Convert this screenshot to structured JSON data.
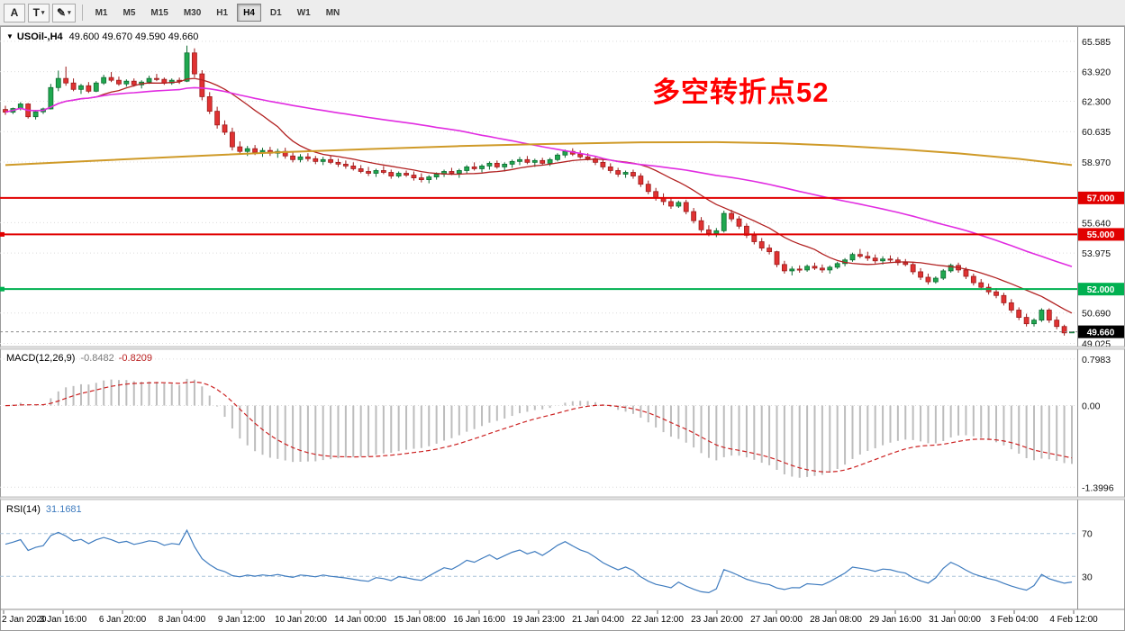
{
  "toolbar": {
    "tool_buttons": [
      {
        "id": "cursor",
        "label": "A",
        "dropdown": false
      },
      {
        "id": "text",
        "label": "T",
        "dropdown": true
      },
      {
        "id": "draw",
        "label": "✎",
        "dropdown": true
      }
    ],
    "dropdown_icon": "▾",
    "timeframes": [
      "M1",
      "M5",
      "M15",
      "M30",
      "H1",
      "H4",
      "D1",
      "W1",
      "MN"
    ],
    "active_timeframe": "H4"
  },
  "window": {
    "collapse_icon": "▼"
  },
  "chart": {
    "symbol_title": "USOil-,H4",
    "ohlc_text": "49.600 49.670 49.590 49.660",
    "annotation": {
      "text": "多空转折点52",
      "color": "#ff0000"
    },
    "price_axis_labels": [
      "65.585",
      "63.920",
      "62.300",
      "60.635",
      "58.970",
      "55.640",
      "53.975",
      "50.690",
      "49.025"
    ],
    "levels": [
      {
        "label": "57.000",
        "value": 57.0,
        "color": "#e10000",
        "anchor": false
      },
      {
        "label": "55.000",
        "value": 55.0,
        "color": "#e10000",
        "anchor": true
      },
      {
        "label": "52.000",
        "value": 52.0,
        "color": "#00b050",
        "anchor": true
      }
    ],
    "current_price": {
      "label": "49.660",
      "value": 49.66,
      "color": "#000000"
    }
  },
  "indicators": {
    "macd": {
      "name": "MACD(12,26,9)",
      "main_value": "-0.8482",
      "signal_value": "-0.8209",
      "axis_labels": [
        {
          "text": "0.7983",
          "value": 0.7983
        },
        {
          "text": "0.00",
          "value": 0
        },
        {
          "text": "-1.3996",
          "value": -1.3996
        }
      ],
      "histogram_color": "#bdbdbd",
      "signal_color": "#cc2222"
    },
    "rsi": {
      "name": "RSI(14)",
      "value": "31.1681",
      "line_color": "#3f7cbf",
      "levels": [
        {
          "text": "70",
          "value": 70
        },
        {
          "text": "30",
          "value": 30
        }
      ]
    }
  },
  "time_axis": {
    "labels": [
      "2 Jan 2020",
      "3 Jan 16:00",
      "6 Jan 20:00",
      "8 Jan 04:00",
      "9 Jan 12:00",
      "10 Jan 20:00",
      "14 Jan 00:00",
      "15 Jan 08:00",
      "16 Jan 16:00",
      "19 Jan 23:00",
      "21 Jan 04:00",
      "22 Jan 12:00",
      "23 Jan 20:00",
      "27 Jan 00:00",
      "28 Jan 08:00",
      "29 Jan 16:00",
      "31 Jan 00:00",
      "3 Feb 04:00",
      "4 Feb 12:00"
    ]
  },
  "chart_data": {
    "type": "candlestick",
    "symbol": "USOil",
    "timeframe": "H4",
    "title": "USOil-,H4",
    "price_range": [
      48.9,
      66.37
    ],
    "macd_range": [
      -1.55,
      0.95
    ],
    "rsi_range": [
      0,
      100
    ],
    "candle_up_color": "#1fa84f",
    "candle_down_color": "#e03232",
    "candles": [
      [
        61.85,
        62.05,
        61.55,
        61.7
      ],
      [
        61.7,
        61.95,
        61.6,
        61.9
      ],
      [
        61.9,
        62.25,
        61.8,
        62.15
      ],
      [
        62.15,
        62.2,
        61.35,
        61.45
      ],
      [
        61.45,
        61.8,
        61.3,
        61.72
      ],
      [
        61.72,
        61.95,
        61.6,
        61.88
      ],
      [
        61.88,
        63.25,
        61.85,
        63.05
      ],
      [
        63.05,
        63.98,
        62.85,
        63.55
      ],
      [
        63.55,
        64.2,
        63.15,
        63.3
      ],
      [
        63.3,
        63.55,
        62.85,
        62.95
      ],
      [
        62.95,
        63.25,
        62.7,
        63.15
      ],
      [
        63.15,
        63.35,
        62.75,
        62.85
      ],
      [
        62.85,
        63.4,
        62.8,
        63.3
      ],
      [
        63.3,
        63.75,
        63.2,
        63.6
      ],
      [
        63.6,
        63.9,
        63.35,
        63.45
      ],
      [
        63.45,
        63.65,
        63.15,
        63.25
      ],
      [
        63.25,
        63.5,
        63.1,
        63.4
      ],
      [
        63.4,
        63.55,
        63.1,
        63.2
      ],
      [
        63.2,
        63.45,
        63.0,
        63.35
      ],
      [
        63.35,
        63.7,
        63.25,
        63.55
      ],
      [
        63.55,
        63.8,
        63.4,
        63.5
      ],
      [
        63.5,
        63.6,
        63.2,
        63.3
      ],
      [
        63.3,
        63.55,
        63.2,
        63.45
      ],
      [
        63.45,
        63.6,
        63.25,
        63.4
      ],
      [
        63.4,
        65.35,
        63.35,
        64.95
      ],
      [
        64.95,
        65.2,
        63.6,
        63.8
      ],
      [
        63.8,
        64.0,
        62.35,
        62.55
      ],
      [
        62.55,
        62.8,
        61.6,
        61.75
      ],
      [
        61.75,
        62.0,
        60.8,
        61.0
      ],
      [
        61.0,
        61.25,
        60.45,
        60.6
      ],
      [
        60.6,
        60.85,
        59.6,
        59.8
      ],
      [
        59.8,
        60.1,
        59.4,
        59.55
      ],
      [
        59.55,
        59.85,
        59.3,
        59.7
      ],
      [
        59.7,
        59.9,
        59.35,
        59.5
      ],
      [
        59.5,
        59.75,
        59.25,
        59.6
      ],
      [
        59.6,
        59.8,
        59.3,
        59.45
      ],
      [
        59.45,
        59.7,
        59.2,
        59.55
      ],
      [
        59.55,
        59.75,
        59.15,
        59.3
      ],
      [
        59.3,
        59.5,
        58.95,
        59.1
      ],
      [
        59.1,
        59.4,
        58.95,
        59.25
      ],
      [
        59.25,
        59.45,
        59.0,
        59.15
      ],
      [
        59.15,
        59.3,
        58.85,
        59.0
      ],
      [
        59.0,
        59.25,
        58.8,
        59.1
      ],
      [
        59.1,
        59.3,
        58.85,
        58.95
      ],
      [
        58.95,
        59.15,
        58.7,
        58.85
      ],
      [
        58.85,
        59.05,
        58.6,
        58.75
      ],
      [
        58.75,
        58.95,
        58.5,
        58.6
      ],
      [
        58.6,
        58.8,
        58.35,
        58.45
      ],
      [
        58.45,
        58.7,
        58.2,
        58.35
      ],
      [
        58.35,
        58.6,
        58.15,
        58.5
      ],
      [
        58.5,
        58.75,
        58.3,
        58.4
      ],
      [
        58.4,
        58.55,
        58.05,
        58.2
      ],
      [
        58.2,
        58.45,
        58.1,
        58.35
      ],
      [
        58.35,
        58.5,
        58.15,
        58.25
      ],
      [
        58.25,
        58.45,
        57.95,
        58.1
      ],
      [
        58.1,
        58.35,
        57.85,
        58.0
      ],
      [
        58.0,
        58.25,
        57.8,
        58.15
      ],
      [
        58.15,
        58.4,
        58.0,
        58.3
      ],
      [
        58.3,
        58.55,
        58.15,
        58.45
      ],
      [
        58.45,
        58.65,
        58.25,
        58.35
      ],
      [
        58.35,
        58.6,
        58.1,
        58.5
      ],
      [
        58.5,
        58.8,
        58.35,
        58.7
      ],
      [
        58.7,
        58.95,
        58.5,
        58.6
      ],
      [
        58.6,
        58.85,
        58.4,
        58.75
      ],
      [
        58.75,
        59.0,
        58.55,
        58.9
      ],
      [
        58.9,
        59.05,
        58.6,
        58.7
      ],
      [
        58.7,
        58.95,
        58.45,
        58.85
      ],
      [
        58.85,
        59.1,
        58.65,
        59.0
      ],
      [
        59.0,
        59.25,
        58.8,
        59.1
      ],
      [
        59.1,
        59.3,
        58.85,
        58.95
      ],
      [
        58.95,
        59.15,
        58.7,
        59.05
      ],
      [
        59.05,
        59.2,
        58.8,
        58.9
      ],
      [
        58.9,
        59.2,
        58.75,
        59.1
      ],
      [
        59.1,
        59.45,
        59.0,
        59.35
      ],
      [
        59.35,
        59.65,
        59.2,
        59.55
      ],
      [
        59.55,
        59.72,
        59.3,
        59.4
      ],
      [
        59.4,
        59.6,
        59.15,
        59.25
      ],
      [
        59.25,
        59.45,
        59.05,
        59.15
      ],
      [
        59.15,
        59.3,
        58.8,
        58.95
      ],
      [
        58.95,
        59.1,
        58.55,
        58.7
      ],
      [
        58.7,
        58.9,
        58.35,
        58.5
      ],
      [
        58.5,
        58.65,
        58.15,
        58.3
      ],
      [
        58.3,
        58.5,
        58.1,
        58.4
      ],
      [
        58.4,
        58.55,
        58.05,
        58.2
      ],
      [
        58.2,
        58.35,
        57.6,
        57.75
      ],
      [
        57.75,
        57.95,
        57.2,
        57.35
      ],
      [
        57.35,
        57.55,
        56.85,
        57.0
      ],
      [
        57.0,
        57.25,
        56.6,
        56.8
      ],
      [
        56.8,
        57.0,
        56.4,
        56.55
      ],
      [
        56.55,
        56.85,
        56.45,
        56.75
      ],
      [
        56.75,
        56.9,
        56.1,
        56.25
      ],
      [
        56.25,
        56.45,
        55.6,
        55.75
      ],
      [
        55.75,
        55.95,
        55.1,
        55.25
      ],
      [
        55.25,
        55.5,
        54.9,
        55.05
      ],
      [
        55.05,
        55.35,
        54.85,
        55.2
      ],
      [
        55.2,
        56.3,
        55.1,
        56.15
      ],
      [
        56.15,
        56.35,
        55.7,
        55.85
      ],
      [
        55.85,
        56.0,
        55.3,
        55.45
      ],
      [
        55.45,
        55.6,
        54.8,
        54.95
      ],
      [
        54.95,
        55.15,
        54.45,
        54.6
      ],
      [
        54.6,
        54.8,
        54.1,
        54.25
      ],
      [
        54.25,
        54.45,
        53.9,
        54.05
      ],
      [
        54.05,
        54.1,
        53.2,
        53.35
      ],
      [
        53.35,
        53.55,
        52.85,
        53.0
      ],
      [
        53.0,
        53.25,
        52.75,
        53.1
      ],
      [
        53.1,
        53.3,
        52.9,
        53.05
      ],
      [
        53.05,
        53.35,
        52.95,
        53.25
      ],
      [
        53.25,
        53.45,
        53.05,
        53.15
      ],
      [
        53.15,
        53.35,
        52.9,
        53.05
      ],
      [
        53.05,
        53.3,
        52.85,
        53.2
      ],
      [
        53.2,
        53.5,
        53.1,
        53.4
      ],
      [
        53.4,
        53.7,
        53.25,
        53.6
      ],
      [
        53.6,
        54.0,
        53.5,
        53.9
      ],
      [
        53.9,
        54.2,
        53.7,
        53.8
      ],
      [
        53.8,
        54.05,
        53.55,
        53.7
      ],
      [
        53.7,
        53.9,
        53.4,
        53.55
      ],
      [
        53.55,
        53.8,
        53.35,
        53.65
      ],
      [
        53.65,
        53.85,
        53.45,
        53.6
      ],
      [
        53.6,
        53.75,
        53.3,
        53.45
      ],
      [
        53.45,
        53.65,
        53.25,
        53.35
      ],
      [
        53.35,
        53.5,
        52.8,
        52.95
      ],
      [
        52.95,
        53.15,
        52.5,
        52.65
      ],
      [
        52.65,
        52.85,
        52.25,
        52.4
      ],
      [
        52.4,
        52.7,
        52.3,
        52.6
      ],
      [
        52.6,
        53.1,
        52.5,
        53.0
      ],
      [
        53.0,
        53.4,
        52.9,
        53.3
      ],
      [
        53.3,
        53.45,
        52.9,
        53.05
      ],
      [
        53.05,
        53.2,
        52.55,
        52.7
      ],
      [
        52.7,
        52.85,
        52.2,
        52.35
      ],
      [
        52.35,
        52.55,
        51.95,
        52.1
      ],
      [
        52.1,
        52.3,
        51.7,
        51.85
      ],
      [
        51.85,
        52.05,
        51.5,
        51.65
      ],
      [
        51.65,
        51.8,
        51.1,
        51.25
      ],
      [
        51.25,
        51.45,
        50.7,
        50.85
      ],
      [
        50.85,
        51.0,
        50.3,
        50.45
      ],
      [
        50.45,
        50.65,
        49.95,
        50.1
      ],
      [
        50.1,
        50.4,
        49.95,
        50.3
      ],
      [
        50.3,
        50.95,
        50.2,
        50.85
      ],
      [
        50.85,
        50.95,
        50.15,
        50.3
      ],
      [
        50.3,
        50.5,
        49.8,
        49.95
      ],
      [
        49.95,
        50.05,
        49.45,
        49.6
      ],
      [
        49.6,
        49.67,
        49.59,
        49.66
      ]
    ],
    "moving_averages": [
      {
        "name": "ma-fast-red",
        "method": "sma",
        "period": 13,
        "color": "#b22222",
        "width": 1.3
      },
      {
        "name": "ma-mid-magenta",
        "method": "sma",
        "period": 55,
        "color": "#e12ce1",
        "width": 1.6
      },
      {
        "name": "ma-slow-orange",
        "method": "points",
        "color": "#cf9a28",
        "width": 2,
        "points": [
          [
            0,
            58.8
          ],
          [
            12,
            59.04
          ],
          [
            24,
            59.28
          ],
          [
            36,
            59.5
          ],
          [
            48,
            59.68
          ],
          [
            60,
            59.84
          ],
          [
            72,
            59.96
          ],
          [
            84,
            60.05
          ],
          [
            94,
            60.06
          ],
          [
            102,
            60.0
          ],
          [
            110,
            59.87
          ],
          [
            118,
            59.68
          ],
          [
            126,
            59.44
          ],
          [
            134,
            59.14
          ],
          [
            141,
            58.8
          ]
        ]
      }
    ]
  }
}
